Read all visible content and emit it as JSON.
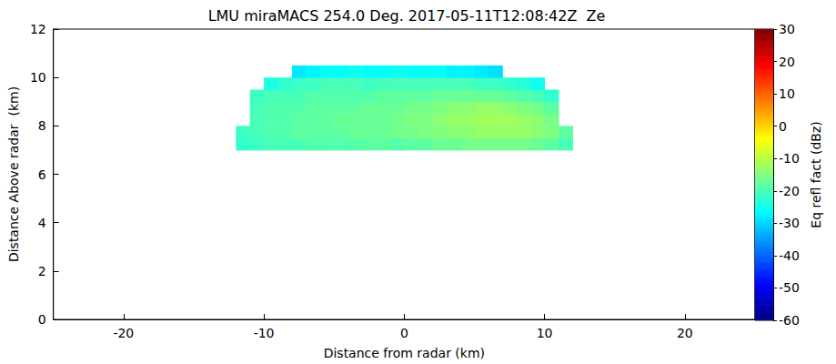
{
  "chart_data": {
    "type": "heatmap",
    "title": "LMU miraMACS 254.0 Deg. 2017-05-11T12:08:42Z  Ze",
    "x_label": "Distance from radar (km)",
    "y_label": "Distance Above radar  (km)",
    "xlim": [
      -25,
      25
    ],
    "xticks": [
      -20,
      -10,
      0,
      10,
      20
    ],
    "ylim": [
      0,
      12
    ],
    "yticks": [
      0,
      2,
      4,
      6,
      8,
      10,
      12
    ],
    "x": [
      -11.5,
      -10.5,
      -9.5,
      -8.5,
      -7.5,
      -6.5,
      -5.5,
      -4.5,
      -3.5,
      -2.5,
      -1.5,
      -0.5,
      0.5,
      1.5,
      2.5,
      3.5,
      4.5,
      5.5,
      6.5,
      7.5,
      8.5,
      9.5,
      10.5,
      11.5
    ],
    "y": [
      7.25,
      7.75,
      8.25,
      8.75,
      9.25,
      9.75,
      10.25
    ],
    "values": [
      [
        -22,
        -21,
        -20,
        -20,
        -20,
        -19,
        -19,
        -19,
        -19,
        -18,
        -18,
        -19,
        -18,
        -18,
        -17,
        -17,
        -16,
        -16,
        -16,
        -16,
        -16,
        -17,
        -18,
        -20
      ],
      [
        -21,
        -20,
        -19,
        -19,
        -18,
        -18,
        -18,
        -18,
        -17,
        -17,
        -17,
        -16,
        -16,
        -15,
        -15,
        -14,
        -14,
        -13,
        -13,
        -13,
        -13,
        -14,
        -15,
        -18
      ],
      [
        null,
        -20,
        -19,
        -19,
        -18,
        -18,
        -18,
        -17,
        -17,
        -17,
        -17,
        -16,
        -15,
        -15,
        -14,
        -13,
        -13,
        -12,
        -12,
        -12,
        -13,
        -14,
        -16,
        null
      ],
      [
        null,
        -20,
        -19,
        -19,
        -19,
        -18,
        -18,
        -18,
        -18,
        -17,
        -17,
        -17,
        -16,
        -16,
        -15,
        -14,
        -14,
        -13,
        -13,
        -14,
        -15,
        -16,
        -18,
        null
      ],
      [
        null,
        -21,
        -20,
        -20,
        -20,
        -19,
        -19,
        -19,
        -19,
        -19,
        -18,
        -18,
        -18,
        -18,
        -17,
        -17,
        -17,
        -17,
        -17,
        -18,
        -19,
        -20,
        -22,
        null
      ],
      [
        null,
        null,
        -24,
        -22,
        -21,
        -21,
        -20,
        -20,
        -20,
        -21,
        -20,
        -20,
        -20,
        -20,
        -20,
        -20,
        -20,
        -21,
        -21,
        -22,
        -23,
        -25,
        null,
        null
      ],
      [
        null,
        null,
        null,
        null,
        -28,
        -27,
        -26,
        -26,
        -25,
        -26,
        -26,
        -25,
        -26,
        -26,
        -26,
        -27,
        -27,
        -28,
        -29,
        null,
        null,
        null,
        null,
        null
      ]
    ],
    "colorbar": {
      "label": "Eq refl fact (dBz)",
      "range": [
        -60,
        30
      ],
      "ticks": [
        -60,
        -50,
        -40,
        -30,
        -20,
        -10,
        0,
        10,
        20,
        30
      ]
    }
  }
}
